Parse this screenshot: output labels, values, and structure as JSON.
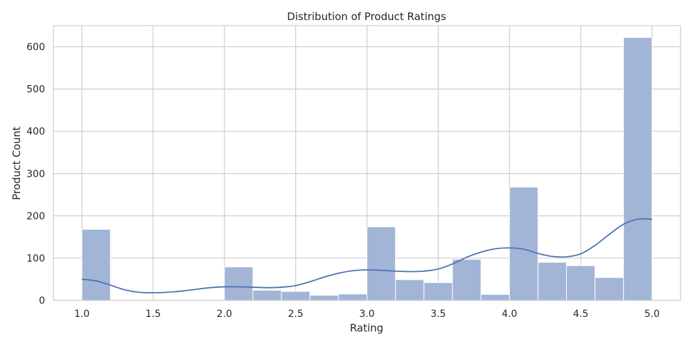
{
  "chart_data": {
    "type": "bar",
    "title": "Distribution of Product Ratings",
    "xlabel": "Rating",
    "ylabel": "Product Count",
    "xlim": [
      0.8,
      5.2
    ],
    "ylim": [
      0,
      650
    ],
    "x_ticks": [
      "1.0",
      "1.5",
      "2.0",
      "2.5",
      "3.0",
      "3.5",
      "4.0",
      "4.5",
      "5.0"
    ],
    "y_ticks": [
      "0",
      "100",
      "200",
      "300",
      "400",
      "500",
      "600"
    ],
    "grid": true,
    "bin_edges": [
      1.0,
      1.2,
      1.4,
      1.6,
      1.8,
      2.0,
      2.2,
      2.4,
      2.6,
      2.8,
      3.0,
      3.2,
      3.4,
      3.6,
      3.8,
      4.0,
      4.2,
      4.4,
      4.6,
      4.8,
      5.0
    ],
    "values": [
      168,
      0,
      0,
      0,
      0,
      79,
      24,
      21,
      12,
      15,
      174,
      49,
      42,
      97,
      14,
      268,
      90,
      82,
      54,
      622
    ],
    "kde": {
      "x": [
        1.0,
        1.1,
        1.2,
        1.3,
        1.4,
        1.5,
        1.6,
        1.7,
        1.8,
        1.9,
        2.0,
        2.1,
        2.2,
        2.3,
        2.4,
        2.5,
        2.6,
        2.7,
        2.8,
        2.9,
        3.0,
        3.1,
        3.2,
        3.3,
        3.4,
        3.5,
        3.6,
        3.7,
        3.8,
        3.9,
        4.0,
        4.1,
        4.2,
        4.3,
        4.4,
        4.5,
        4.6,
        4.7,
        4.8,
        4.9,
        5.0
      ],
      "y": [
        50,
        46,
        36,
        25,
        19,
        18,
        19,
        22,
        26,
        30,
        32,
        32,
        31,
        30,
        31,
        35,
        44,
        55,
        64,
        70,
        72,
        71,
        69,
        68,
        69,
        74,
        86,
        102,
        114,
        122,
        124,
        121,
        111,
        104,
        103,
        110,
        130,
        156,
        180,
        192,
        192
      ]
    },
    "colors": {
      "bar_fill": "#a2b5d6",
      "bar_stroke": "#ffffff",
      "kde_line": "#4c72b0",
      "grid": "#cccccc"
    }
  }
}
